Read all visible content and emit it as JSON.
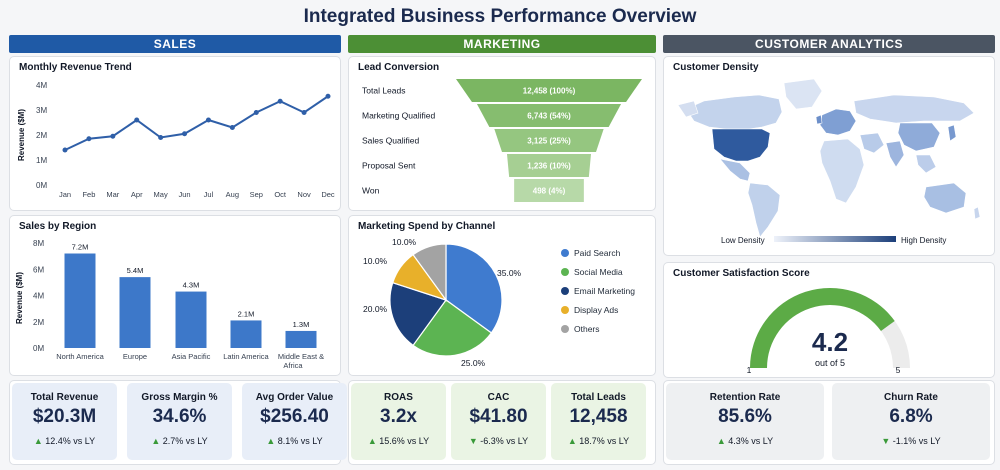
{
  "title": "Integrated Business Performance Overview",
  "sections": {
    "sales": "SALES",
    "marketing": "MARKETING",
    "customer": "CUSTOMER ANALYTICS"
  },
  "colors": {
    "sales": "#1f5aa6",
    "marketing": "#4c8f35",
    "customer": "#4b5563"
  },
  "chart_data": [
    {
      "id": "revenue_trend",
      "type": "line",
      "title": "Monthly Revenue Trend",
      "ylabel": "Revenue ($M)",
      "categories": [
        "Jan",
        "Feb",
        "Mar",
        "Apr",
        "May",
        "Jun",
        "Jul",
        "Aug",
        "Sep",
        "Oct",
        "Nov",
        "Dec"
      ],
      "values": [
        1.4,
        1.85,
        1.95,
        2.6,
        1.9,
        2.05,
        2.6,
        2.3,
        2.9,
        3.35,
        2.9,
        3.55
      ],
      "ylim": [
        0,
        4
      ],
      "yticks": [
        "0M",
        "1M",
        "2M",
        "3M",
        "4M"
      ]
    },
    {
      "id": "sales_region",
      "type": "bar",
      "title": "Sales by Region",
      "ylabel": "Revenue ($M)",
      "categories": [
        "North America",
        "Europe",
        "Asia Pacific",
        "Latin America",
        "Middle East & Africa"
      ],
      "values": [
        7.2,
        5.4,
        4.3,
        2.1,
        1.3
      ],
      "labels": [
        "7.2M",
        "5.4M",
        "4.3M",
        "2.1M",
        "1.3M"
      ],
      "ylim": [
        0,
        8
      ],
      "yticks": [
        "0M",
        "2M",
        "4M",
        "6M",
        "8M"
      ]
    },
    {
      "id": "lead_conversion",
      "type": "funnel",
      "title": "Lead Conversion",
      "categories": [
        "Total Leads",
        "Marketing Qualified",
        "Sales Qualified",
        "Proposal Sent",
        "Won"
      ],
      "values": [
        12458,
        6743,
        3125,
        1236,
        498
      ],
      "labels": [
        "12,458 (100%)",
        "6,743 (54%)",
        "3,125 (25%)",
        "1,236 (10%)",
        "498 (4%)"
      ]
    },
    {
      "id": "marketing_spend",
      "type": "pie",
      "title": "Marketing Spend by Channel",
      "categories": [
        "Paid Search",
        "Social Media",
        "Email Marketing",
        "Display Ads",
        "Others"
      ],
      "values": [
        35.0,
        25.0,
        20.0,
        10.0,
        10.0
      ],
      "labels": [
        "35.0%",
        "25.0%",
        "20.0%",
        "10.0%",
        "10.0%"
      ],
      "colors": [
        "#3f7bcf",
        "#5cb452",
        "#1c3f7a",
        "#e8b02a",
        "#a3a3a3"
      ],
      "legend": "right"
    },
    {
      "id": "customer_density",
      "type": "map",
      "title": "Customer Density",
      "legend_low": "Low Density",
      "legend_high": "High Density"
    },
    {
      "id": "csat",
      "type": "gauge",
      "title": "Customer Satisfaction Score",
      "value": 4.2,
      "value_label": "4.2",
      "sub_label": "out of 5",
      "min": 1,
      "max": 5,
      "min_label": "1",
      "max_label": "5"
    }
  ],
  "kpis": {
    "sales": [
      {
        "label": "Total Revenue",
        "value": "$20.3M",
        "change": "12.4% vs LY",
        "dir": "up"
      },
      {
        "label": "Gross Margin %",
        "value": "34.6%",
        "change": "2.7% vs LY",
        "dir": "up"
      },
      {
        "label": "Avg Order Value",
        "value": "$256.40",
        "change": "8.1% vs LY",
        "dir": "up"
      }
    ],
    "marketing": [
      {
        "label": "ROAS",
        "value": "3.2x",
        "change": "15.6% vs LY",
        "dir": "up"
      },
      {
        "label": "CAC",
        "value": "$41.80",
        "change": "-6.3% vs LY",
        "dir": "down"
      },
      {
        "label": "Total Leads",
        "value": "12,458",
        "change": "18.7% vs LY",
        "dir": "up"
      }
    ],
    "customer": [
      {
        "label": "Retention Rate",
        "value": "85.6%",
        "change": "4.3% vs LY",
        "dir": "up"
      },
      {
        "label": "Churn Rate",
        "value": "6.8%",
        "change": "-1.1% vs LY",
        "dir": "down"
      }
    ]
  }
}
